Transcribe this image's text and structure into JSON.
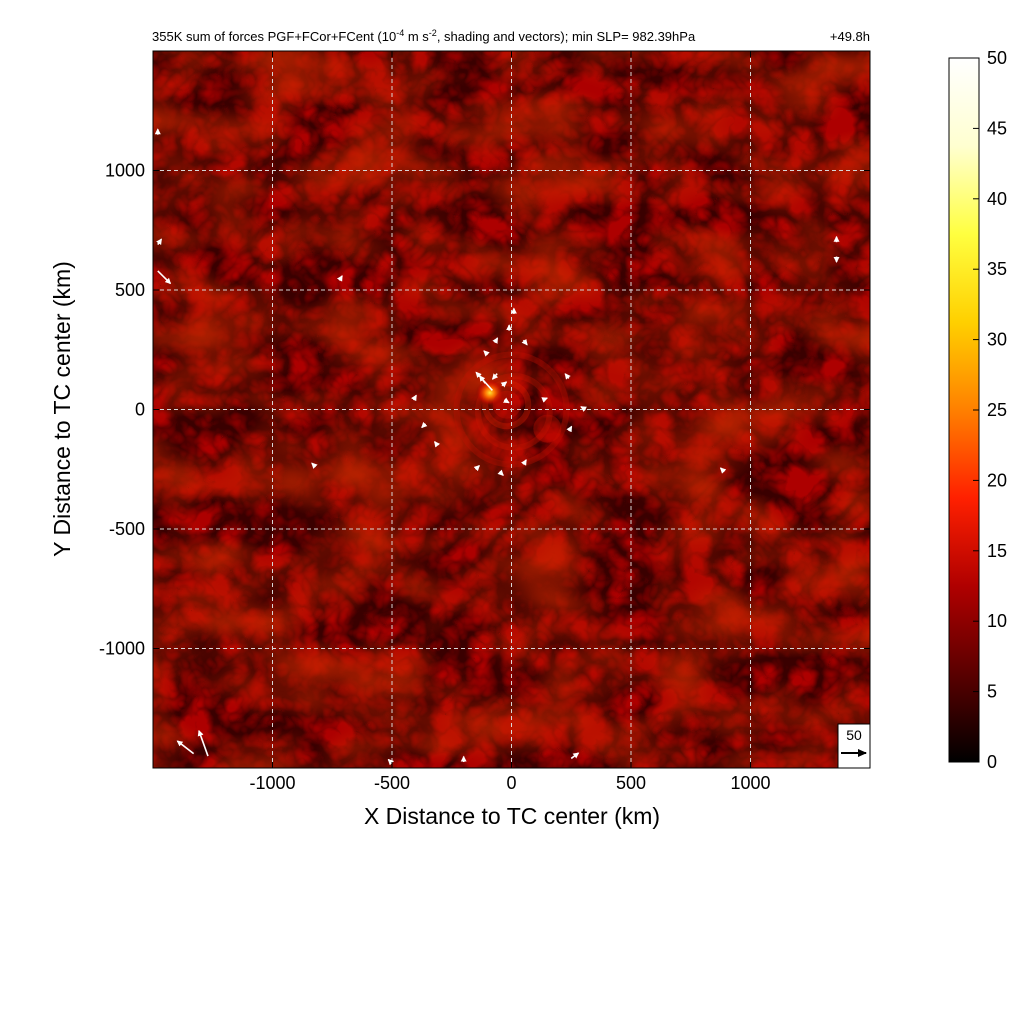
{
  "chart_data": {
    "type": "heatmap",
    "title": {
      "main": "355K sum of forces PGF+FCor+FCent (10",
      "exp": "-4",
      "mid": " m s",
      "exp2": "-2",
      "tail": ", shading and vectors); min SLP= 982.39hPa",
      "time": "+49.8h"
    },
    "xlabel": "X Distance to TC center (km)",
    "ylabel": "Y Distance to TC center (km)",
    "xlim": [
      -1500,
      1500
    ],
    "ylim": [
      -1500,
      1500
    ],
    "x_ticks": [
      -1000,
      -500,
      0,
      500,
      1000
    ],
    "y_ticks": [
      -1000,
      -500,
      0,
      500,
      1000
    ],
    "x_tick_labels": [
      "-1000",
      "-500",
      "0",
      "500",
      "1000"
    ],
    "y_tick_labels": [
      "-1000",
      "-500",
      "0",
      "500",
      "1000"
    ],
    "grid": true,
    "colorbar": {
      "min": 0,
      "max": 50,
      "ticks": [
        0,
        5,
        10,
        15,
        20,
        25,
        30,
        35,
        40,
        45,
        50
      ],
      "tick_labels": [
        "0",
        "5",
        "10",
        "15",
        "20",
        "25",
        "30",
        "35",
        "40",
        "45",
        "50"
      ],
      "colormap": "hot",
      "stops": [
        "#000000",
        "#5a0000",
        "#b00000",
        "#ff2000",
        "#ff8000",
        "#ffd000",
        "#ffff40",
        "#ffffd0",
        "#ffffff"
      ]
    },
    "field_features": [
      {
        "name": "core-maximum",
        "x": -90,
        "y": 70,
        "value": 27
      },
      {
        "name": "inner-ring",
        "x": -20,
        "y": 20,
        "value": 12
      },
      {
        "name": "spiral-band",
        "x": 150,
        "y": -80,
        "value": 10
      }
    ],
    "vectors": [
      {
        "x": -80,
        "y": 80,
        "u": -18,
        "v": 20
      },
      {
        "x": -110,
        "y": 110,
        "u": -6,
        "v": 8
      },
      {
        "x": -60,
        "y": 150,
        "u": -5,
        "v": -6
      },
      {
        "x": -100,
        "y": 230,
        "u": -4,
        "v": 4
      },
      {
        "x": -70,
        "y": 280,
        "u": 3,
        "v": 5
      },
      {
        "x": -10,
        "y": 330,
        "u": 0,
        "v": 6
      },
      {
        "x": 10,
        "y": 400,
        "u": 0,
        "v": 6
      },
      {
        "x": 50,
        "y": 290,
        "u": 4,
        "v": -5
      },
      {
        "x": -30,
        "y": 40,
        "u": 5,
        "v": -3
      },
      {
        "x": -40,
        "y": 100,
        "u": 5,
        "v": 4
      },
      {
        "x": 130,
        "y": 40,
        "u": 5,
        "v": 2
      },
      {
        "x": 240,
        "y": 130,
        "u": -4,
        "v": 5
      },
      {
        "x": 310,
        "y": 0,
        "u": -5,
        "v": 3
      },
      {
        "x": 240,
        "y": -90,
        "u": 3,
        "v": 5
      },
      {
        "x": -360,
        "y": -60,
        "u": -4,
        "v": -4
      },
      {
        "x": -410,
        "y": 40,
        "u": 3,
        "v": 5
      },
      {
        "x": -310,
        "y": -150,
        "u": -3,
        "v": 4
      },
      {
        "x": -150,
        "y": -250,
        "u": 4,
        "v": 4
      },
      {
        "x": -50,
        "y": -260,
        "u": 4,
        "v": -4
      },
      {
        "x": 50,
        "y": -230,
        "u": 3,
        "v": 5
      },
      {
        "x": -820,
        "y": -240,
        "u": -4,
        "v": 4
      },
      {
        "x": -720,
        "y": 540,
        "u": 3,
        "v": 5
      },
      {
        "x": 890,
        "y": -260,
        "u": -4,
        "v": 4
      },
      {
        "x": 1360,
        "y": 700,
        "u": 0,
        "v": 6
      },
      {
        "x": 1360,
        "y": 640,
        "u": 0,
        "v": -6
      },
      {
        "x": -1480,
        "y": 690,
        "u": 4,
        "v": 6
      },
      {
        "x": -1480,
        "y": 580,
        "u": 14,
        "v": -14
      },
      {
        "x": -1480,
        "y": 1150,
        "u": 0,
        "v": 6
      },
      {
        "x": -1270,
        "y": -1450,
        "u": -10,
        "v": 28
      },
      {
        "x": -1330,
        "y": -1440,
        "u": -18,
        "v": 14
      },
      {
        "x": 250,
        "y": -1460,
        "u": 8,
        "v": 6
      },
      {
        "x": -500,
        "y": -1480,
        "u": -4,
        "v": 4
      },
      {
        "x": -200,
        "y": -1475,
        "u": 0,
        "v": 6
      }
    ],
    "reference_vector": {
      "label": "50",
      "magnitude": 50
    }
  }
}
